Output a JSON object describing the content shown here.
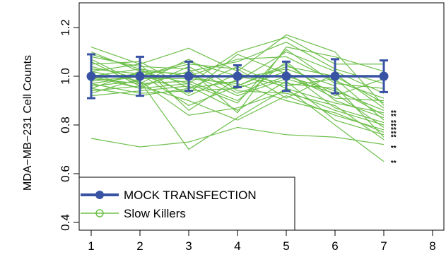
{
  "chart_data": {
    "type": "line",
    "title": "",
    "xlabel": "",
    "ylabel": "MDA−MB−231 Cell Counts",
    "xlim": [
      1,
      8
    ],
    "ylim": [
      0.4,
      1.2
    ],
    "x_ticks": [
      "1",
      "2",
      "3",
      "4",
      "5",
      "6",
      "7",
      "8"
    ],
    "y_ticks": [
      "0.4",
      "0.6",
      "0.8",
      "1.0",
      "1.2"
    ],
    "grid": false,
    "legend_position": "bottom-left",
    "colors": {
      "mock": "#3953a4",
      "slow_killers": "#6dbf4a"
    },
    "mock_transfection": {
      "name": "MOCK TRANSFECTION",
      "x": [
        1,
        2,
        3,
        4,
        5,
        6,
        7
      ],
      "mean": [
        1.0,
        1.0,
        1.0,
        1.0,
        1.0,
        1.0,
        1.0
      ],
      "lower": [
        0.91,
        0.92,
        0.94,
        0.955,
        0.94,
        0.93,
        0.935
      ],
      "upper": [
        1.09,
        1.08,
        1.06,
        1.045,
        1.06,
        1.07,
        1.065
      ]
    },
    "slow_killers": {
      "name": "Slow Killers",
      "x": [
        1,
        2,
        3,
        4,
        5,
        6,
        7
      ],
      "lines": [
        [
          0.745,
          0.71,
          0.73,
          0.79,
          0.76,
          0.75,
          0.72
        ],
        [
          1.02,
          0.98,
          0.7,
          0.83,
          0.95,
          0.8,
          0.65
        ],
        [
          1.12,
          1.05,
          1.115,
          1.02,
          1.17,
          1.1,
          0.88
        ],
        [
          1.1,
          1.02,
          0.97,
          1.1,
          1.16,
          1.05,
          1.05
        ],
        [
          1.08,
          1.04,
          1.03,
          0.85,
          1.12,
          1.08,
          1.02
        ],
        [
          1.06,
          0.96,
          1.02,
          1.06,
          1.14,
          1.03,
          0.97
        ],
        [
          1.05,
          1.06,
          0.95,
          0.98,
          1.1,
          1.02,
          0.93
        ],
        [
          1.04,
          0.99,
          1.0,
          1.07,
          1.08,
          0.98,
          0.91
        ],
        [
          1.03,
          1.01,
          0.88,
          0.96,
          1.04,
          1.0,
          0.89
        ],
        [
          1.01,
          0.95,
          1.04,
          0.93,
          1.0,
          0.94,
          0.86
        ],
        [
          1.0,
          1.03,
          0.92,
          1.01,
          0.97,
          0.95,
          0.84
        ],
        [
          0.99,
          0.97,
          0.98,
          0.9,
          1.06,
          0.9,
          0.83
        ],
        [
          0.98,
          1.0,
          1.06,
          1.0,
          0.96,
          0.99,
          0.82
        ],
        [
          0.97,
          0.93,
          0.94,
          0.95,
          1.02,
          0.87,
          0.81
        ],
        [
          0.96,
          0.98,
          0.84,
          0.87,
          0.94,
          0.86,
          0.8
        ],
        [
          0.95,
          1.02,
          1.01,
          0.92,
          0.99,
          0.93,
          0.79
        ],
        [
          0.94,
          0.96,
          0.9,
          0.82,
          0.92,
          0.84,
          0.78
        ],
        [
          0.93,
          0.99,
          0.99,
          0.97,
          0.9,
          0.85,
          0.77
        ],
        [
          0.92,
          0.94,
          0.96,
          0.86,
          0.98,
          0.82,
          0.76
        ],
        [
          1.02,
          1.05,
          0.86,
          0.99,
          1.03,
          0.96,
          0.75
        ],
        [
          1.07,
          0.97,
          1.07,
          0.94,
          0.93,
          0.88,
          0.74
        ],
        [
          0.99,
          1.01,
          0.93,
          1.09,
          1.01,
          0.91,
          0.9
        ],
        [
          1.0,
          0.95,
          0.97,
          0.89,
          1.11,
          0.97,
          0.95
        ],
        [
          0.97,
          1.0,
          1.05,
          1.03,
          0.91,
          1.01,
          0.87
        ],
        [
          1.09,
          1.03,
          1.0,
          0.96,
          1.05,
          0.92,
          0.99
        ],
        [
          0.95,
          0.92,
          0.95,
          1.04,
          0.95,
          0.89,
          0.85
        ]
      ]
    },
    "significance": {
      "label": "**",
      "x": 7.2,
      "y": [
        0.855,
        0.84,
        0.815,
        0.8,
        0.785,
        0.77,
        0.755,
        0.71,
        0.65
      ]
    }
  }
}
